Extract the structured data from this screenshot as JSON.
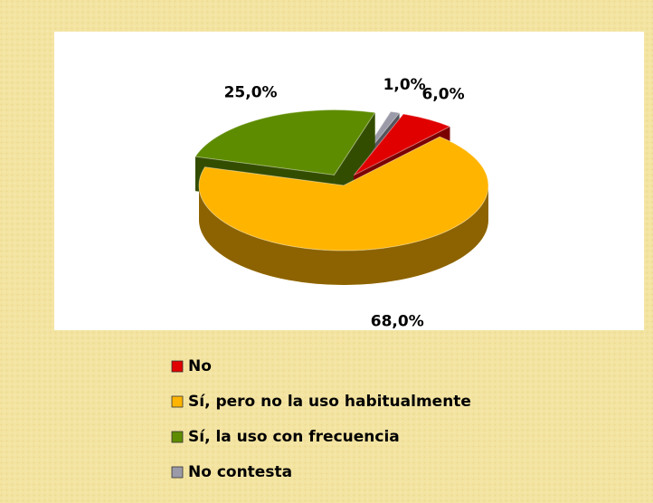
{
  "chart_data": {
    "type": "pie",
    "categories": [
      "No",
      "Sí, pero no la uso habitualmente",
      "Sí, la uso con frecuencia",
      "No contesta"
    ],
    "values": [
      6,
      68,
      25,
      1
    ],
    "value_labels": [
      "6,0%",
      "68,0%",
      "25,0%",
      "1,0%"
    ],
    "colors": [
      "#e00000",
      "#ffb400",
      "#5e8c00",
      "#9a9aa8"
    ],
    "legend": "bottom"
  }
}
